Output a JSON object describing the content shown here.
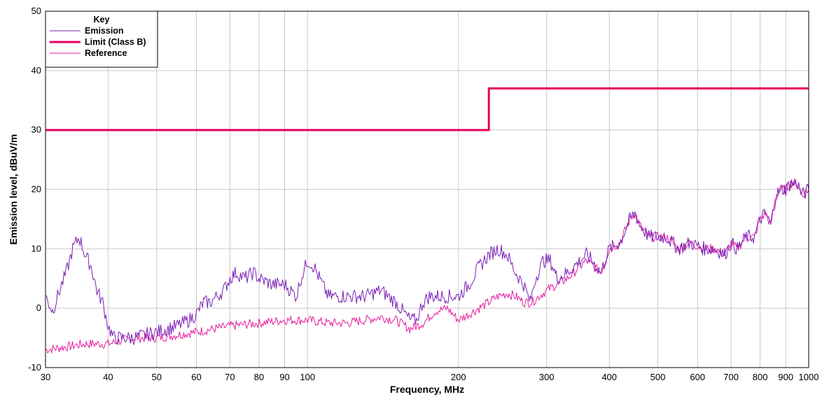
{
  "chart_data": {
    "type": "line",
    "title": "",
    "xlabel": "Frequency, MHz",
    "ylabel": "Emission level, dBuV/m",
    "x_scale": "log",
    "xlim": [
      30,
      1000
    ],
    "ylim": [
      -10,
      50
    ],
    "x_ticks": [
      30,
      40,
      50,
      60,
      70,
      80,
      90,
      100,
      200,
      300,
      400,
      500,
      600,
      700,
      800,
      900,
      1000
    ],
    "x_tick_labels": [
      "30",
      "40",
      "50",
      "60",
      "70",
      "80",
      "90",
      "100",
      "200",
      "300",
      "400",
      "500",
      "600",
      "700",
      "800",
      "900",
      "1000"
    ],
    "y_ticks": [
      -10,
      0,
      10,
      20,
      30,
      40,
      50
    ],
    "y_tick_labels": [
      "-10",
      "0",
      "10",
      "20",
      "30",
      "40",
      "50"
    ],
    "grid": true,
    "legend": {
      "title": "Key",
      "placement": "top-left"
    },
    "series": [
      {
        "name": "Emission",
        "color": "#7a1fb5",
        "style": "thin",
        "points": [
          [
            30,
            2
          ],
          [
            31,
            -0.5
          ],
          [
            32,
            3
          ],
          [
            33,
            6
          ],
          [
            34,
            10
          ],
          [
            35,
            12
          ],
          [
            36,
            9
          ],
          [
            37,
            7
          ],
          [
            38,
            3
          ],
          [
            39,
            1
          ],
          [
            40,
            -3
          ],
          [
            41,
            -5
          ],
          [
            43,
            -5
          ],
          [
            45,
            -5
          ],
          [
            50,
            -4
          ],
          [
            55,
            -3
          ],
          [
            58,
            -2
          ],
          [
            60,
            -1
          ],
          [
            62,
            1
          ],
          [
            64,
            1
          ],
          [
            66,
            2
          ],
          [
            68,
            3
          ],
          [
            70,
            5
          ],
          [
            72,
            6
          ],
          [
            75,
            5
          ],
          [
            78,
            6
          ],
          [
            80,
            5
          ],
          [
            85,
            4
          ],
          [
            90,
            4
          ],
          [
            95,
            2
          ],
          [
            97,
            5
          ],
          [
            100,
            8
          ],
          [
            103,
            7
          ],
          [
            107,
            4
          ],
          [
            110,
            2
          ],
          [
            120,
            2
          ],
          [
            130,
            2
          ],
          [
            140,
            3
          ],
          [
            150,
            1
          ],
          [
            160,
            -2
          ],
          [
            165,
            -2
          ],
          [
            170,
            1
          ],
          [
            175,
            2
          ],
          [
            180,
            2
          ],
          [
            190,
            2
          ],
          [
            200,
            2
          ],
          [
            210,
            4
          ],
          [
            220,
            7
          ],
          [
            230,
            9
          ],
          [
            240,
            10
          ],
          [
            250,
            9
          ],
          [
            260,
            6
          ],
          [
            270,
            4
          ],
          [
            278,
            1
          ],
          [
            285,
            5
          ],
          [
            295,
            8
          ],
          [
            305,
            8
          ],
          [
            315,
            5
          ],
          [
            330,
            6
          ],
          [
            350,
            8
          ],
          [
            360,
            9
          ],
          [
            370,
            8
          ],
          [
            385,
            6
          ],
          [
            400,
            10
          ],
          [
            420,
            11
          ],
          [
            440,
            15
          ],
          [
            450,
            16
          ],
          [
            460,
            14
          ],
          [
            480,
            12
          ],
          [
            500,
            12
          ],
          [
            520,
            12
          ],
          [
            550,
            10
          ],
          [
            580,
            11
          ],
          [
            620,
            10
          ],
          [
            650,
            10
          ],
          [
            680,
            9
          ],
          [
            700,
            11
          ],
          [
            720,
            10
          ],
          [
            750,
            12
          ],
          [
            780,
            12
          ],
          [
            800,
            15
          ],
          [
            820,
            16
          ],
          [
            840,
            14
          ],
          [
            860,
            19
          ],
          [
            880,
            20
          ],
          [
            900,
            20
          ],
          [
            920,
            21
          ],
          [
            950,
            21
          ],
          [
            970,
            19
          ],
          [
            1000,
            20
          ]
        ]
      },
      {
        "name": "Limit (Class B)",
        "color": "#e6005c",
        "style": "thick",
        "points": [
          [
            30,
            30
          ],
          [
            230,
            30
          ],
          [
            230,
            37
          ],
          [
            1000,
            37
          ]
        ]
      },
      {
        "name": "Reference",
        "color": "#e61ea0",
        "style": "thin",
        "points": [
          [
            30,
            -7
          ],
          [
            33,
            -6.5
          ],
          [
            36,
            -6
          ],
          [
            40,
            -6
          ],
          [
            45,
            -5
          ],
          [
            50,
            -5
          ],
          [
            55,
            -4.5
          ],
          [
            60,
            -4
          ],
          [
            65,
            -3.5
          ],
          [
            70,
            -3
          ],
          [
            80,
            -2.5
          ],
          [
            90,
            -2
          ],
          [
            100,
            -2
          ],
          [
            110,
            -2.5
          ],
          [
            120,
            -2.5
          ],
          [
            130,
            -2
          ],
          [
            140,
            -1.5
          ],
          [
            150,
            -2
          ],
          [
            160,
            -3.5
          ],
          [
            170,
            -2.5
          ],
          [
            180,
            -0.5
          ],
          [
            190,
            0
          ],
          [
            200,
            -2
          ],
          [
            210,
            -1
          ],
          [
            220,
            0
          ],
          [
            240,
            2
          ],
          [
            250,
            2.5
          ],
          [
            260,
            2
          ],
          [
            270,
            1
          ],
          [
            280,
            1
          ],
          [
            300,
            3
          ],
          [
            330,
            5
          ],
          [
            360,
            8
          ],
          [
            385,
            6
          ],
          [
            400,
            10
          ],
          [
            420,
            11
          ],
          [
            440,
            15
          ],
          [
            450,
            16
          ],
          [
            460,
            14
          ],
          [
            480,
            12
          ],
          [
            500,
            12
          ],
          [
            520,
            12
          ],
          [
            550,
            10
          ],
          [
            580,
            11
          ],
          [
            620,
            10
          ],
          [
            650,
            10
          ],
          [
            680,
            9
          ],
          [
            700,
            11
          ],
          [
            720,
            10
          ],
          [
            750,
            12
          ],
          [
            780,
            12
          ],
          [
            800,
            15
          ],
          [
            820,
            16
          ],
          [
            840,
            14
          ],
          [
            860,
            19
          ],
          [
            880,
            20
          ],
          [
            900,
            20
          ],
          [
            920,
            21
          ],
          [
            950,
            21
          ],
          [
            970,
            19
          ],
          [
            1000,
            20
          ]
        ]
      }
    ]
  }
}
